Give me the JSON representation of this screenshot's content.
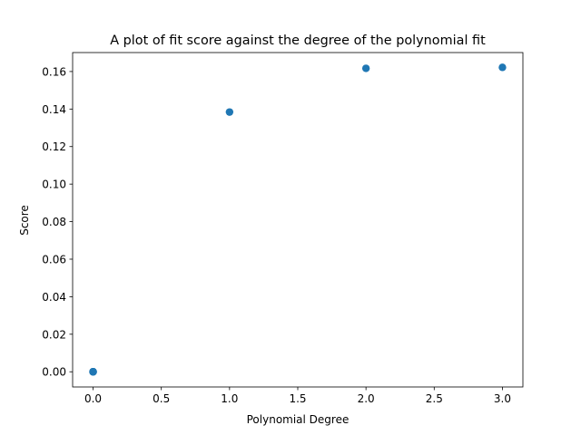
{
  "chart_data": {
    "type": "scatter",
    "title": "A plot of fit score against the degree of the polynomial fit",
    "xlabel": "Polynomial Degree",
    "ylabel": "Score",
    "xlim": [
      -0.15,
      3.15
    ],
    "ylim": [
      -0.0081,
      0.1701
    ],
    "xticks": [
      0.0,
      0.5,
      1.0,
      1.5,
      2.0,
      2.5,
      3.0
    ],
    "xtick_labels": [
      "0.0",
      "0.5",
      "1.0",
      "1.5",
      "2.0",
      "2.5",
      "3.0"
    ],
    "yticks": [
      0.0,
      0.02,
      0.04,
      0.06,
      0.08,
      0.1,
      0.12,
      0.14,
      0.16
    ],
    "ytick_labels": [
      "0.00",
      "0.02",
      "0.04",
      "0.06",
      "0.08",
      "0.10",
      "0.12",
      "0.14",
      "0.16"
    ],
    "grid": false,
    "marker_color": "#1f77b4",
    "series": [
      {
        "x": [
          0,
          0,
          0,
          0,
          0,
          1,
          2,
          3
        ],
        "y": [
          0.0,
          0.0,
          0.0,
          0.0,
          0.0,
          0.1384,
          0.1617,
          0.1622
        ]
      }
    ]
  }
}
